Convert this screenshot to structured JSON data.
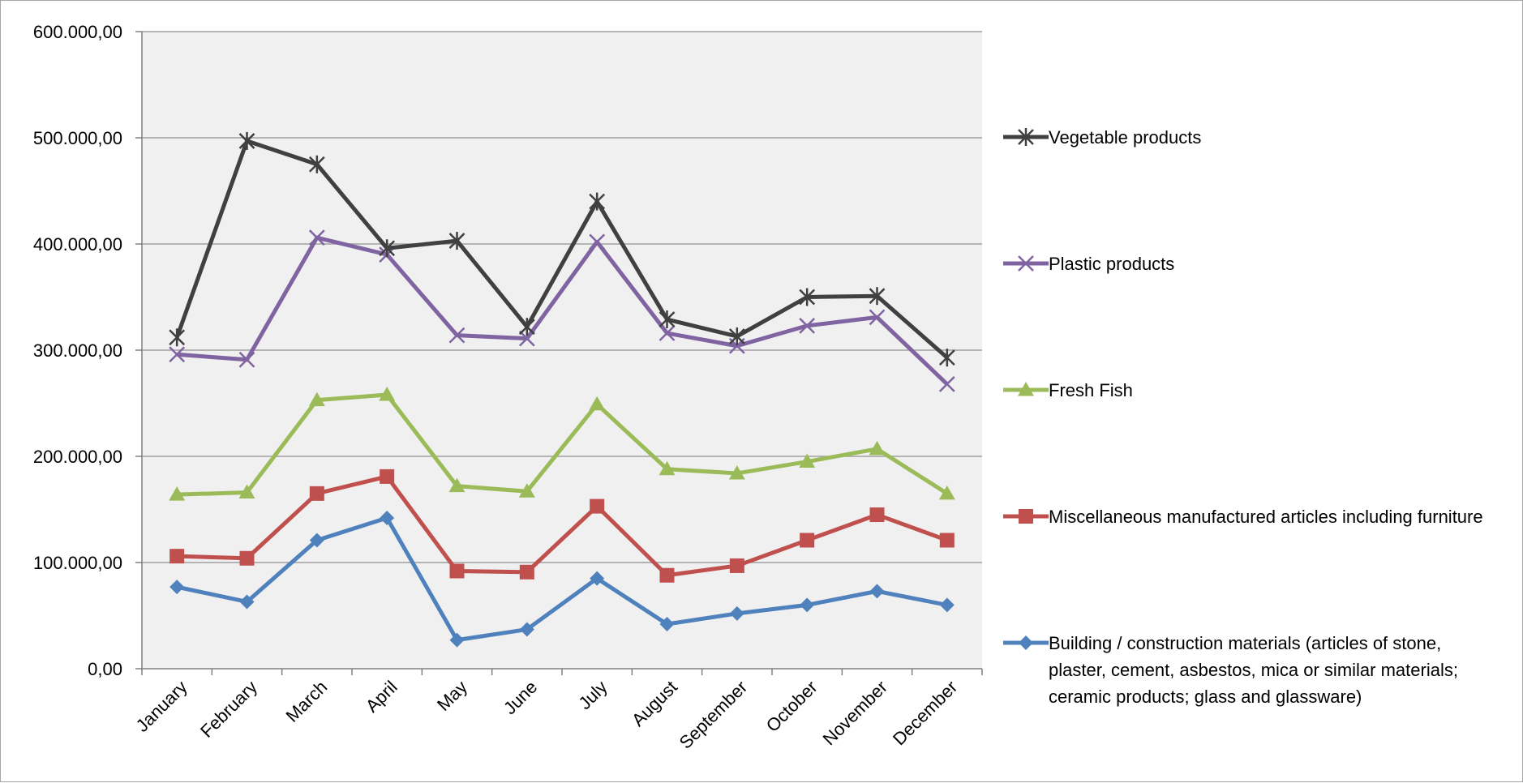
{
  "chart_data": {
    "type": "line",
    "title": "",
    "xlabel": "",
    "ylabel": "",
    "categories": [
      "January",
      "February",
      "March",
      "April",
      "May",
      "June",
      "July",
      "August",
      "September",
      "October",
      "November",
      "December"
    ],
    "ylim": [
      0,
      600000
    ],
    "yticks": [
      0,
      100000,
      200000,
      300000,
      400000,
      500000,
      600000
    ],
    "ytick_labels": [
      "0,00",
      "100.000,00",
      "200.000,00",
      "300.000,00",
      "400.000,00",
      "500.000,00",
      "600.000,00"
    ],
    "grid": true,
    "plot_background": "#f0f0f0",
    "legend_position": "right",
    "series": [
      {
        "name": "Vegetable products",
        "color": "#404040",
        "marker": "asterisk",
        "values": [
          312000,
          497000,
          475000,
          396000,
          403000,
          322000,
          440000,
          329000,
          313000,
          350000,
          351000,
          293000
        ]
      },
      {
        "name": "Plastic products",
        "color": "#8064a2",
        "marker": "x",
        "values": [
          296000,
          291000,
          406000,
          390000,
          314000,
          311000,
          402000,
          316000,
          304000,
          323000,
          331000,
          268000
        ]
      },
      {
        "name": "Fresh Fish",
        "color": "#9bbb59",
        "marker": "triangle",
        "values": [
          164000,
          166000,
          253000,
          258000,
          172000,
          167000,
          249000,
          188000,
          184000,
          195000,
          207000,
          165000
        ]
      },
      {
        "name": "Miscellaneous manufactured articles including furniture",
        "color": "#c0504d",
        "marker": "square",
        "values": [
          106000,
          104000,
          165000,
          181000,
          92000,
          91000,
          153000,
          88000,
          97000,
          121000,
          145000,
          121000
        ]
      },
      {
        "name": "Building / construction materials (articles of stone, plaster, cement, asbestos, mica or similar materials; ceramic products; glass and glassware)",
        "color": "#4f81bd",
        "marker": "diamond",
        "values": [
          77000,
          63000,
          121000,
          142000,
          27000,
          37000,
          85000,
          42000,
          52000,
          60000,
          73000,
          60000
        ]
      }
    ]
  }
}
